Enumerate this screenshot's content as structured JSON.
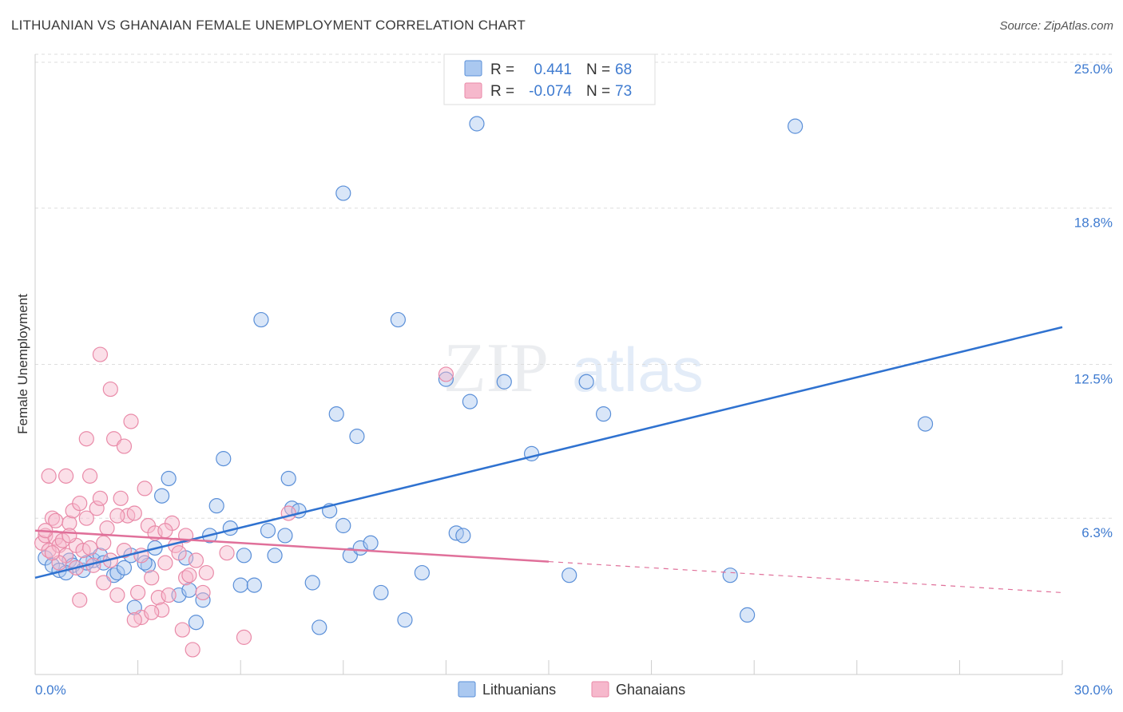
{
  "title": "LITHUANIAN VS GHANAIAN FEMALE UNEMPLOYMENT CORRELATION CHART",
  "source": "Source: ZipAtlas.com",
  "watermark": {
    "zip": "ZIP",
    "atlas": "atlas"
  },
  "colors": {
    "blue_fill": "#aac8f0",
    "blue_stroke": "#5a8fd8",
    "blue_line": "#2f72d0",
    "pink_fill": "#f6b8cc",
    "pink_stroke": "#e98aa8",
    "pink_line": "#e0709a",
    "label_blue": "#3f7bd0"
  },
  "legend": {
    "rows": [
      {
        "r_label": "R =",
        "r_value": "0.441",
        "n_label": "N =",
        "n_value": "68",
        "series": "blue"
      },
      {
        "r_label": "R =",
        "r_value": "-0.074",
        "n_label": "N =",
        "n_value": "73",
        "series": "pink"
      }
    ]
  },
  "bottom_legend": [
    "Lithuanians",
    "Ghanaians"
  ],
  "chart_data": {
    "type": "scatter",
    "title": "LITHUANIAN VS GHANAIAN FEMALE UNEMPLOYMENT CORRELATION CHART",
    "xlabel": "",
    "ylabel": "Female Unemployment",
    "xlim": [
      0,
      30
    ],
    "ylim": [
      0,
      25
    ],
    "x_tick_labels": [
      "0.0%",
      "30.0%"
    ],
    "y_ticks": [
      6.3,
      12.5,
      18.8,
      25.0
    ],
    "y_tick_labels": [
      "6.3%",
      "12.5%",
      "18.8%",
      "25.0%"
    ],
    "grid": true,
    "legend_position": "top-center",
    "series": [
      {
        "name": "Lithuanians",
        "color": "blue",
        "trend": {
          "x": [
            0,
            30
          ],
          "y": [
            3.9,
            14.0
          ],
          "dashed_from": null
        },
        "points": [
          [
            0.3,
            4.7
          ],
          [
            0.5,
            4.4
          ],
          [
            0.7,
            4.2
          ],
          [
            1.0,
            4.6
          ],
          [
            1.1,
            4.4
          ],
          [
            1.4,
            4.2
          ],
          [
            1.7,
            4.6
          ],
          [
            1.9,
            4.8
          ],
          [
            2.3,
            4.0
          ],
          [
            2.4,
            4.1
          ],
          [
            2.6,
            4.3
          ],
          [
            2.8,
            4.8
          ],
          [
            2.9,
            2.7
          ],
          [
            3.3,
            4.4
          ],
          [
            3.5,
            5.1
          ],
          [
            3.7,
            7.2
          ],
          [
            3.9,
            7.9
          ],
          [
            4.2,
            3.2
          ],
          [
            4.4,
            4.7
          ],
          [
            4.5,
            3.4
          ],
          [
            4.7,
            2.1
          ],
          [
            4.9,
            3.0
          ],
          [
            5.1,
            5.6
          ],
          [
            5.3,
            6.8
          ],
          [
            5.5,
            8.7
          ],
          [
            5.7,
            5.9
          ],
          [
            6.0,
            3.6
          ],
          [
            6.1,
            4.8
          ],
          [
            6.4,
            3.6
          ],
          [
            6.6,
            14.3
          ],
          [
            6.8,
            5.8
          ],
          [
            7.0,
            4.8
          ],
          [
            7.3,
            5.6
          ],
          [
            7.4,
            7.9
          ],
          [
            7.5,
            6.7
          ],
          [
            7.7,
            6.6
          ],
          [
            8.1,
            3.7
          ],
          [
            8.3,
            1.9
          ],
          [
            8.6,
            6.6
          ],
          [
            8.8,
            10.5
          ],
          [
            9.0,
            6.0
          ],
          [
            9.2,
            4.8
          ],
          [
            9.4,
            9.6
          ],
          [
            9.5,
            5.1
          ],
          [
            9.8,
            5.3
          ],
          [
            10.1,
            3.3
          ],
          [
            10.6,
            14.3
          ],
          [
            10.8,
            2.2
          ],
          [
            11.3,
            4.1
          ],
          [
            12.0,
            11.9
          ],
          [
            12.3,
            5.7
          ],
          [
            12.5,
            5.6
          ],
          [
            12.7,
            11.0
          ],
          [
            12.9,
            22.2
          ],
          [
            13.7,
            11.8
          ],
          [
            14.5,
            8.9
          ],
          [
            15.6,
            4.0
          ],
          [
            16.1,
            11.8
          ],
          [
            16.6,
            10.5
          ],
          [
            20.3,
            4.0
          ],
          [
            20.8,
            2.4
          ],
          [
            22.2,
            22.1
          ],
          [
            26.0,
            10.1
          ],
          [
            9.0,
            19.4
          ],
          [
            3.2,
            4.5
          ],
          [
            0.9,
            4.1
          ],
          [
            2.0,
            4.5
          ],
          [
            1.5,
            4.5
          ]
        ]
      },
      {
        "name": "Ghanaians",
        "color": "pink",
        "trend": {
          "x": [
            0,
            30
          ],
          "y": [
            5.8,
            3.3
          ],
          "solid_until": 15
        },
        "points": [
          [
            0.2,
            5.3
          ],
          [
            0.3,
            5.6
          ],
          [
            0.4,
            5.0
          ],
          [
            0.5,
            6.3
          ],
          [
            0.6,
            5.5
          ],
          [
            0.7,
            5.2
          ],
          [
            0.8,
            5.4
          ],
          [
            0.9,
            4.8
          ],
          [
            1.0,
            6.1
          ],
          [
            1.1,
            6.6
          ],
          [
            1.2,
            5.2
          ],
          [
            1.3,
            6.9
          ],
          [
            1.4,
            5.0
          ],
          [
            1.5,
            6.3
          ],
          [
            1.6,
            8.0
          ],
          [
            1.7,
            4.4
          ],
          [
            1.8,
            6.7
          ],
          [
            1.9,
            7.1
          ],
          [
            2.0,
            5.3
          ],
          [
            2.1,
            5.9
          ],
          [
            2.2,
            4.6
          ],
          [
            2.3,
            9.5
          ],
          [
            2.4,
            3.2
          ],
          [
            2.5,
            7.1
          ],
          [
            2.6,
            5.0
          ],
          [
            2.7,
            6.4
          ],
          [
            2.8,
            10.2
          ],
          [
            2.9,
            6.5
          ],
          [
            3.0,
            3.3
          ],
          [
            3.1,
            2.3
          ],
          [
            3.2,
            7.5
          ],
          [
            3.3,
            6.0
          ],
          [
            3.4,
            3.9
          ],
          [
            3.5,
            5.7
          ],
          [
            3.6,
            3.1
          ],
          [
            3.7,
            2.6
          ],
          [
            3.8,
            4.5
          ],
          [
            3.9,
            3.2
          ],
          [
            4.0,
            6.1
          ],
          [
            4.1,
            5.2
          ],
          [
            4.2,
            4.9
          ],
          [
            4.3,
            1.8
          ],
          [
            4.4,
            3.9
          ],
          [
            4.5,
            4.0
          ],
          [
            4.6,
            1.0
          ],
          [
            4.7,
            4.6
          ],
          [
            1.5,
            9.5
          ],
          [
            1.9,
            12.9
          ],
          [
            2.2,
            11.5
          ],
          [
            2.6,
            9.2
          ],
          [
            0.4,
            8.0
          ],
          [
            0.9,
            8.0
          ],
          [
            1.3,
            3.0
          ],
          [
            2.9,
            2.2
          ],
          [
            3.4,
            2.5
          ],
          [
            4.9,
            3.3
          ],
          [
            5.0,
            4.1
          ],
          [
            5.6,
            4.9
          ],
          [
            6.1,
            1.5
          ],
          [
            7.4,
            6.5
          ],
          [
            12.0,
            12.1
          ],
          [
            0.3,
            5.8
          ],
          [
            0.6,
            6.2
          ],
          [
            1.0,
            5.6
          ],
          [
            2.0,
            3.7
          ],
          [
            3.1,
            4.8
          ],
          [
            3.8,
            5.8
          ],
          [
            4.4,
            5.6
          ],
          [
            0.7,
            4.5
          ],
          [
            1.6,
            5.1
          ],
          [
            2.4,
            6.4
          ],
          [
            0.5,
            4.9
          ],
          [
            1.2,
            4.3
          ]
        ]
      }
    ]
  }
}
